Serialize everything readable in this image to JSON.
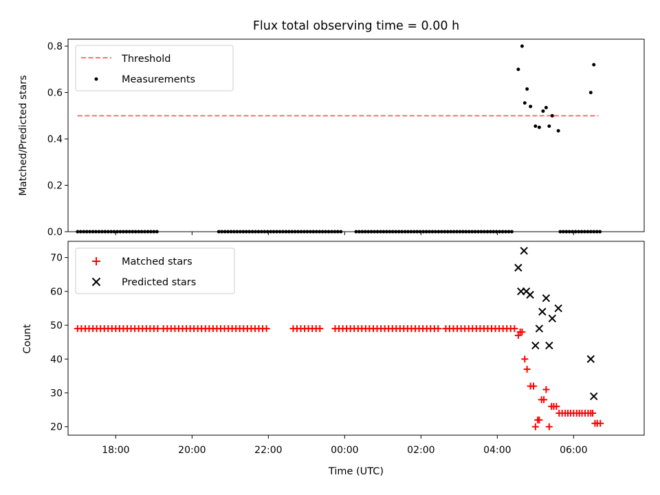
{
  "figure": {
    "title": "Flux total observing time = 0.00 h"
  },
  "chart_data": [
    {
      "type": "scatter",
      "panel": "top",
      "ylabel": "Matched/Predicted stars",
      "xlabel": "",
      "xlim": [
        -7.25,
        7.85
      ],
      "ylim": [
        0,
        0.83
      ],
      "yticks": [
        0.0,
        0.2,
        0.4,
        0.6,
        0.8
      ],
      "ytick_labels": [
        "0.0",
        "0.2",
        "0.4",
        "0.6",
        "0.8"
      ],
      "xtick_hours": [
        -6,
        -4,
        -2,
        0,
        2,
        4,
        6
      ],
      "xtick_labels": [
        "",
        "",
        "",
        "",
        "",
        "",
        ""
      ],
      "legend_position": "top-left",
      "threshold": {
        "name": "Threshold",
        "y": 0.5,
        "x_range": [
          -7.0,
          6.65
        ],
        "color": "#ff6f6f",
        "style": "dashed"
      },
      "series": [
        {
          "name": "Measurements",
          "color": "#000000",
          "marker": "dot",
          "x": [
            4.55,
            4.65,
            4.72,
            4.78,
            4.87,
            5.0,
            5.1,
            5.2,
            5.28,
            5.36,
            5.44,
            5.6,
            6.45,
            6.53
          ],
          "y": [
            0.7,
            0.8,
            0.555,
            0.615,
            0.54,
            0.455,
            0.45,
            0.52,
            0.535,
            0.455,
            0.5,
            0.435,
            0.6,
            0.72
          ],
          "zero_ranges": [
            [
              -7.0,
              -4.9
            ],
            [
              -3.3,
              -0.05
            ],
            [
              0.3,
              4.45
            ],
            [
              5.65,
              6.7
            ]
          ]
        }
      ]
    },
    {
      "type": "scatter",
      "panel": "bottom",
      "ylabel": "Count",
      "xlabel": "Time (UTC)",
      "xlim": [
        -7.25,
        7.85
      ],
      "ylim": [
        17.5,
        74.8
      ],
      "yticks": [
        20,
        30,
        40,
        50,
        60,
        70
      ],
      "ytick_labels": [
        "20",
        "30",
        "40",
        "50",
        "60",
        "70"
      ],
      "xtick_hours": [
        -6,
        -4,
        -2,
        0,
        2,
        4,
        6
      ],
      "xtick_labels": [
        "18:00",
        "20:00",
        "22:00",
        "00:00",
        "02:00",
        "04:00",
        "06:00"
      ],
      "legend_position": "top-left",
      "series": [
        {
          "name": "Matched stars",
          "color": "#ff0000",
          "marker": "plus",
          "constant_ranges": [
            {
              "from": -7.0,
              "to": -4.9,
              "y": 49
            },
            {
              "from": -4.75,
              "to": -2.05,
              "y": 49
            },
            {
              "from": -1.35,
              "to": -0.65,
              "y": 49
            },
            {
              "from": -0.25,
              "to": 2.45,
              "y": 49
            },
            {
              "from": 2.65,
              "to": 4.45,
              "y": 49
            }
          ],
          "x": [
            4.55,
            4.6,
            4.65,
            4.72,
            4.78,
            4.87,
            4.95,
            5.0,
            5.06,
            5.1,
            5.16,
            5.22,
            5.28,
            5.36,
            5.42,
            5.48,
            5.55,
            5.62,
            5.7,
            5.78,
            5.85,
            5.92,
            6.0,
            6.08,
            6.15,
            6.22,
            6.3,
            6.38,
            6.45,
            6.5,
            6.56,
            6.62,
            6.7
          ],
          "y": [
            47,
            48,
            48,
            40,
            37,
            32,
            32,
            20,
            22,
            22,
            28,
            28,
            31,
            20,
            26,
            26,
            26,
            24,
            24,
            24,
            24,
            24,
            24,
            24,
            24,
            24,
            24,
            24,
            24,
            24,
            21,
            21,
            21
          ]
        },
        {
          "name": "Predicted stars",
          "color": "#000000",
          "marker": "cross",
          "x": [
            4.55,
            4.62,
            4.7,
            4.76,
            4.86,
            5.0,
            5.1,
            5.18,
            5.28,
            5.36,
            5.44,
            5.6,
            6.45,
            6.53
          ],
          "y": [
            67,
            60,
            72,
            60,
            59,
            44,
            49,
            54,
            58,
            44,
            52,
            55,
            40,
            29
          ]
        }
      ]
    }
  ]
}
